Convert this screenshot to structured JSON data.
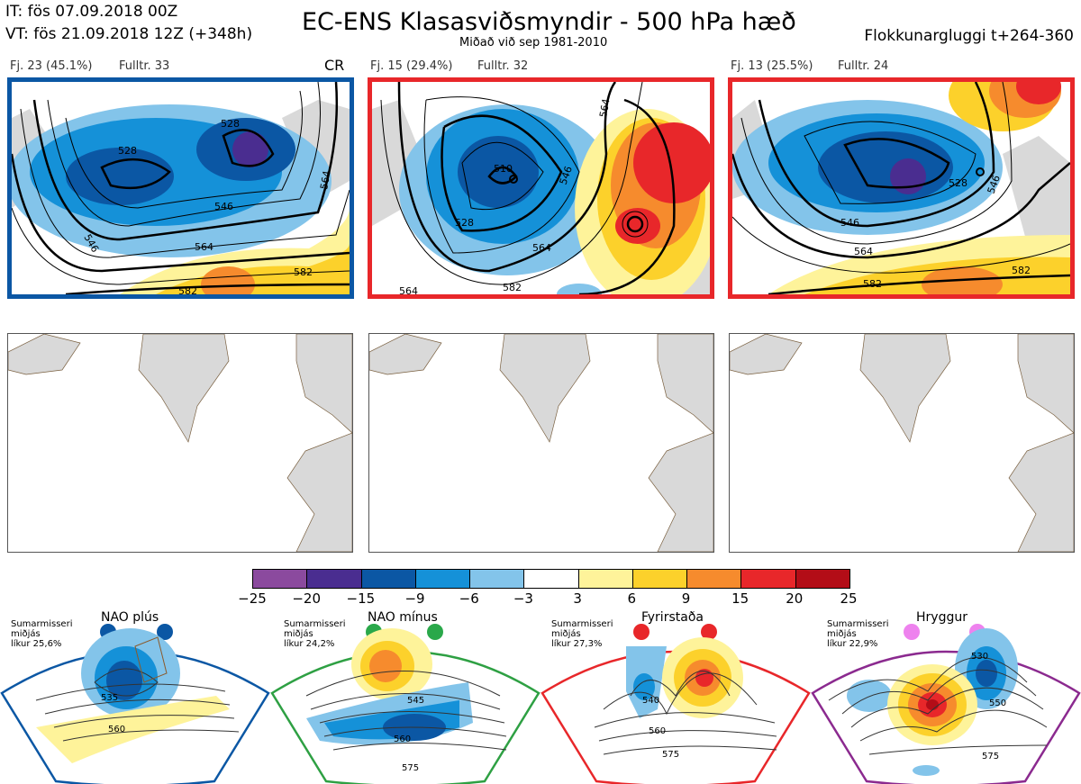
{
  "header": {
    "init_time": "IT: fös 07.09.2018 00Z",
    "valid_time": "VT: fös 21.09.2018 12Z  (+348h)",
    "title": "EC-ENS Klasasviðsmyndir - 500 hPa hæð",
    "subtitle": "Miðað við sep 1981-2010",
    "window": "Flokkunargluggi t+264-360"
  },
  "clusters": [
    {
      "label": "Fj. 23 (45.1%)",
      "rep": "Fulltr. 33",
      "tag": "CR",
      "border": "#0b57a4",
      "contours": [
        "528",
        "528",
        "546",
        "546",
        "564",
        "564",
        "582",
        "582"
      ]
    },
    {
      "label": "Fj. 15 (29.4%)",
      "rep": "Fulltr. 32",
      "tag": "",
      "border": "#e8272a",
      "contours": [
        "510",
        "528",
        "546",
        "564",
        "564",
        "564",
        "582"
      ]
    },
    {
      "label": "Fj. 13 (25.5%)",
      "rep": "Fulltr. 24",
      "tag": "",
      "border": "#e8272a",
      "contours": [
        "528",
        "546",
        "564",
        "546",
        "582",
        "582"
      ]
    }
  ],
  "colorbar": {
    "ticks": [
      "−25",
      "−20",
      "−15",
      "−9",
      "−6",
      "−3",
      "3",
      "6",
      "9",
      "15",
      "20",
      "25"
    ],
    "colors": [
      "#8b4a9e",
      "#4a2d90",
      "#0b57a4",
      "#1591d8",
      "#83c4ea",
      "#ffffff",
      "#fef39a",
      "#fcd12b",
      "#f68b2d",
      "#e8272a",
      "#b30d17"
    ]
  },
  "regimes": [
    {
      "name": "NAO plús",
      "season": "Sumarmisseri",
      "season2": "miðjás",
      "prob": "líkur 25,6%",
      "color": "#0b57a4",
      "dot": "#0b57a4",
      "contours": [
        "535",
        "560"
      ]
    },
    {
      "name": "NAO mínus",
      "season": "Sumarmisseri",
      "season2": "miðjás",
      "prob": "líkur 24,2%",
      "color": "#2ea043",
      "dot": "#2aa84a",
      "contours": [
        "545",
        "560",
        "575"
      ]
    },
    {
      "name": "Fyrirstaða",
      "season": "Sumarmisseri",
      "season2": "miðjás",
      "prob": "líkur 27,3%",
      "color": "#e8272a",
      "dot": "#e8272a",
      "contours": [
        "540",
        "560",
        "575"
      ]
    },
    {
      "name": "Hryggur",
      "season": "Sumarmisseri",
      "season2": "miðjás",
      "prob": "líkur 22,9%",
      "color": "#8b2a8f",
      "dot": "#ee82ee",
      "contours": [
        "530",
        "550",
        "575"
      ]
    }
  ]
}
